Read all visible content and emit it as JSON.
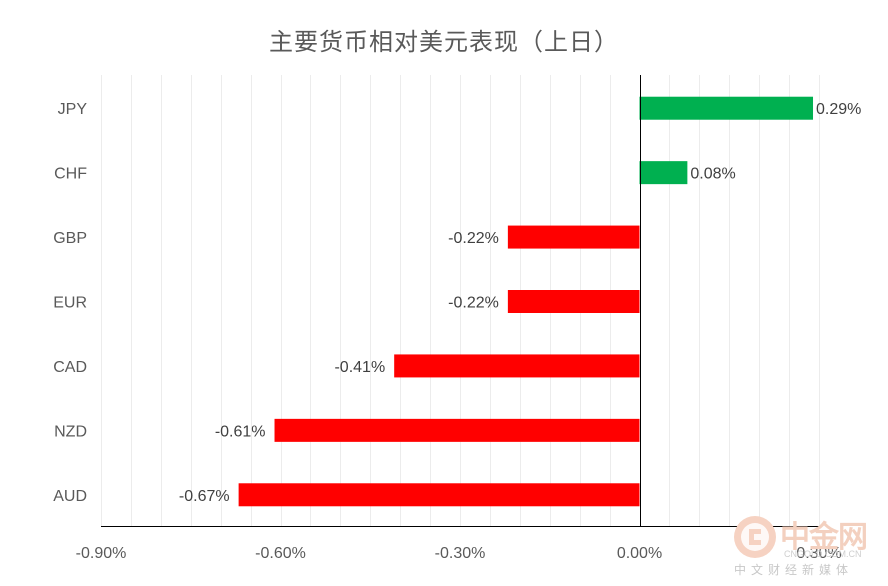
{
  "chart_data": {
    "type": "bar",
    "orientation": "horizontal",
    "title": "主要货币相对美元表现（上日）",
    "categories": [
      "JPY",
      "CHF",
      "GBP",
      "EUR",
      "CAD",
      "NZD",
      "AUD"
    ],
    "values": [
      0.29,
      0.08,
      -0.22,
      -0.22,
      -0.41,
      -0.61,
      -0.67
    ],
    "value_labels": [
      "0.29%",
      "0.08%",
      "-0.22%",
      "-0.22%",
      "-0.41%",
      "-0.61%",
      "-0.67%"
    ],
    "xlim": [
      -0.9,
      0.3
    ],
    "x_ticks": [
      -0.9,
      -0.6,
      -0.3,
      0.0,
      0.3
    ],
    "x_tick_labels": [
      "-0.90%",
      "-0.60%",
      "-0.30%",
      "0.00%",
      "0.30%"
    ],
    "grid": "vertical minor gridlines",
    "legend": "none",
    "colors": {
      "positive": "#00b050",
      "negative": "#ff0000",
      "axis": "#000000",
      "grid": "#ececec"
    }
  },
  "watermark": {
    "logo_text": "中金网",
    "domain": "CNGOLD.COM.CN",
    "slogan": "中文财经新媒体"
  }
}
